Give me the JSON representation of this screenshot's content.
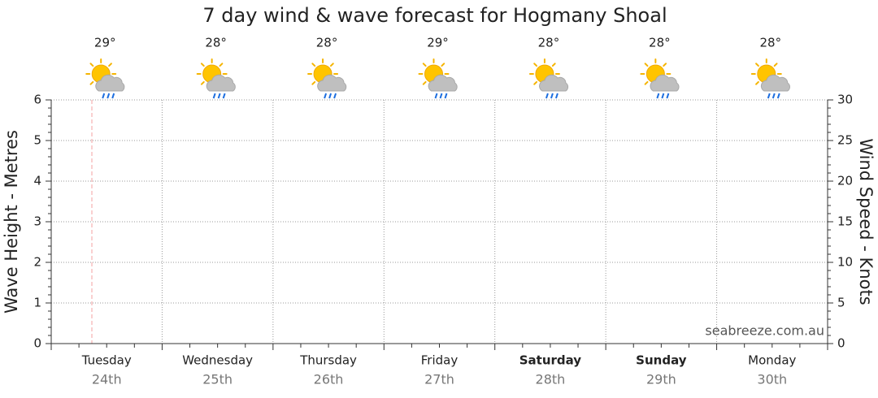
{
  "chart_data": {
    "type": "line",
    "title": "7 day wind & wave forecast for Hogmany Shoal",
    "categories": [
      "Tuesday",
      "Wednesday",
      "Thursday",
      "Friday",
      "Saturday",
      "Sunday",
      "Monday"
    ],
    "dates": [
      "24th",
      "25th",
      "26th",
      "27th",
      "28th",
      "29th",
      "30th"
    ],
    "bold": [
      false,
      false,
      false,
      false,
      true,
      true,
      false
    ],
    "temperatures": [
      "29°",
      "28°",
      "28°",
      "29°",
      "28°",
      "28°",
      "28°"
    ],
    "ylabel": "Wave Height - Metres",
    "y2label": "Wind Speed - Knots",
    "ylim": [
      0,
      6
    ],
    "yticks": [
      0,
      1,
      2,
      3,
      4,
      5,
      6
    ],
    "y2lim": [
      0,
      30
    ],
    "y2ticks": [
      0,
      5,
      10,
      15,
      20,
      25,
      30
    ],
    "grid": true,
    "watermark": "seabreeze.com.au"
  }
}
